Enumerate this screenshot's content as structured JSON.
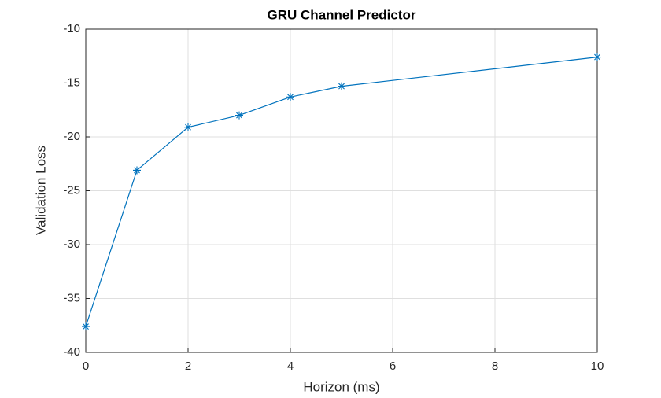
{
  "chart_data": {
    "type": "line",
    "title": "GRU Channel Predictor",
    "x_label": "Horizon (ms)",
    "y_label": "Validation Loss",
    "x": [
      0,
      1,
      2,
      3,
      4,
      5,
      10
    ],
    "series": [
      {
        "name": "Validation Loss",
        "color": "#0072bd",
        "marker": "*",
        "values": [
          -37.6,
          -23.1,
          -19.1,
          -18.0,
          -16.3,
          -15.3,
          -12.6
        ]
      }
    ],
    "xlim": [
      0,
      10
    ],
    "xticks": [
      0,
      2,
      4,
      6,
      8,
      10
    ],
    "ylim": [
      -40,
      -10
    ],
    "yticks": [
      -40,
      -35,
      -30,
      -25,
      -20,
      -15,
      -10
    ],
    "grid": true
  }
}
